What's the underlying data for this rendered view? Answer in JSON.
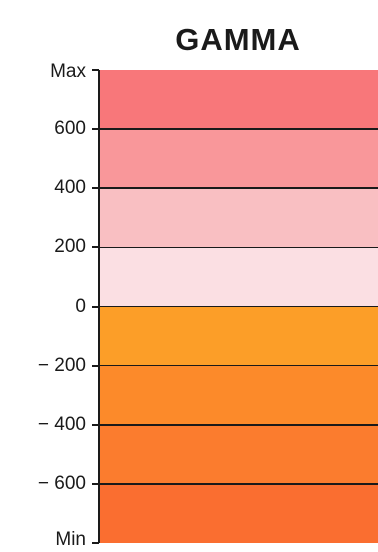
{
  "title": "GAMMA",
  "scale": {
    "levels": [
      {
        "label": "Max",
        "value": 800
      },
      {
        "label": "600",
        "value": 600
      },
      {
        "label": "400",
        "value": 400
      },
      {
        "label": "200",
        "value": 200
      },
      {
        "label": "0",
        "value": 0
      },
      {
        "label": "− 200",
        "value": -200
      },
      {
        "label": "− 400",
        "value": -400
      },
      {
        "label": "− 600",
        "value": -600
      },
      {
        "label": "Min",
        "value": -800
      }
    ],
    "bands": [
      {
        "from": 600,
        "to": 800,
        "color": "#f8777a"
      },
      {
        "from": 400,
        "to": 600,
        "color": "#f9979a"
      },
      {
        "from": 200,
        "to": 400,
        "color": "#f9bfc2"
      },
      {
        "from": 0,
        "to": 200,
        "color": "#fbdfe3"
      },
      {
        "from": -200,
        "to": 0,
        "color": "#fc9e28"
      },
      {
        "from": -400,
        "to": -200,
        "color": "#fc8a2a"
      },
      {
        "from": -600,
        "to": -400,
        "color": "#fb7c2e"
      },
      {
        "from": -800,
        "to": -600,
        "color": "#fa6e30"
      }
    ]
  }
}
